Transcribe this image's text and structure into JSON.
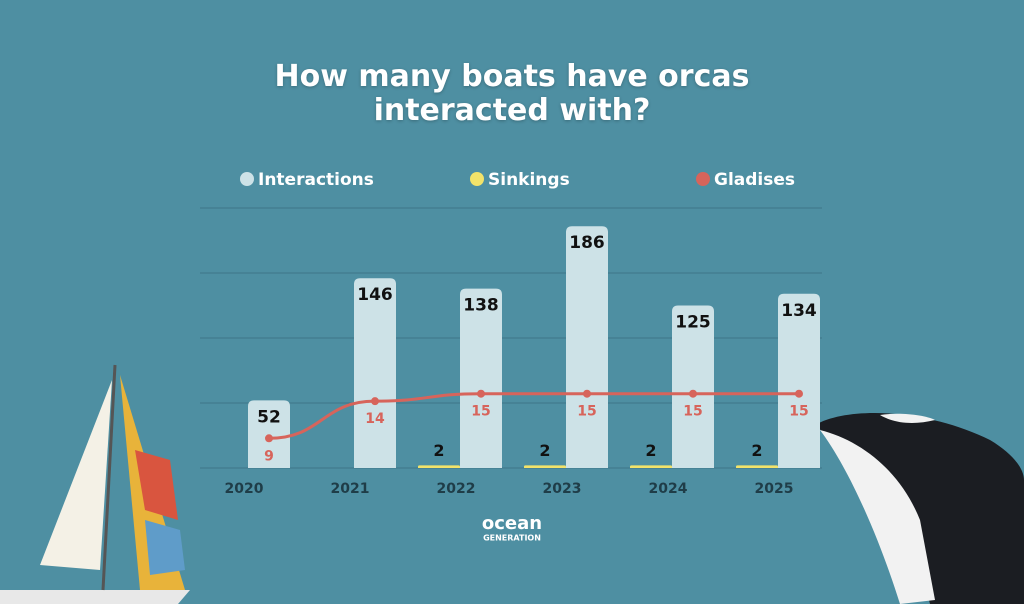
{
  "chart_data": {
    "type": "bar",
    "title": "How many boats have orcas interacted with?",
    "categories": [
      "2020",
      "2021",
      "2022",
      "2023",
      "2024",
      "2025"
    ],
    "series": [
      {
        "name": "Interactions",
        "color": "#cde2e7",
        "values": [
          52,
          146,
          138,
          186,
          125,
          134
        ]
      },
      {
        "name": "Sinkings",
        "color": "#f2e36a",
        "values": [
          null,
          null,
          2,
          2,
          2,
          2
        ]
      },
      {
        "name": "Gladises",
        "color": "#d7645b",
        "type": "line",
        "axis": "y2",
        "values": [
          9,
          14,
          15,
          15,
          15,
          15
        ]
      }
    ],
    "ylim": [
      0,
      200
    ],
    "yticks": [
      0,
      50,
      100,
      150,
      200
    ],
    "y2lim": [
      5,
      40
    ],
    "grid": true,
    "legend": "top",
    "brand": [
      "ocean",
      "GENERATION"
    ]
  }
}
